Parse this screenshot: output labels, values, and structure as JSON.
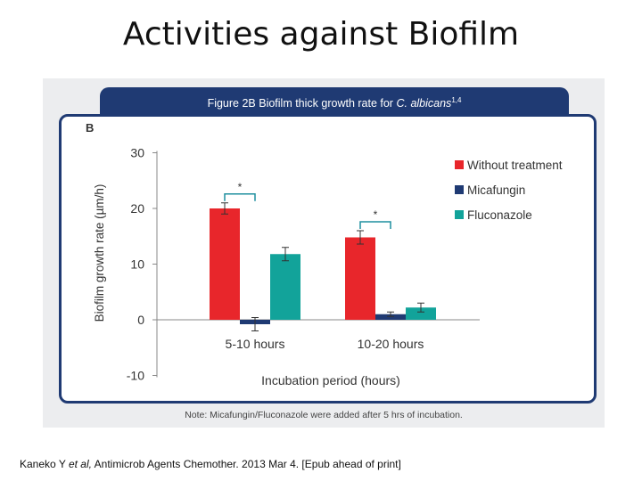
{
  "slide": {
    "title": "Activities against Biofilm",
    "citation": {
      "author": "Kaneko Y",
      "etal": "et al,",
      "rest": "Antimicrob Agents Chemother. 2013 Mar 4. [Epub ahead of print]"
    }
  },
  "figure": {
    "header": "Figure 2B Biofilm thick growth rate for",
    "header_species": "C. albicans",
    "header_refs": "1,4",
    "note": "Note: Micafungin/Fluconazole were added after 5 hrs of incubation."
  },
  "chart_data": {
    "type": "bar",
    "panel_label": "B",
    "title": "",
    "xlabel": "Incubation period (hours)",
    "ylabel": "Biofilm growth rate (µm/h)",
    "ylim": [
      -10,
      30
    ],
    "yticks": [
      "30",
      "20",
      "10",
      "0",
      "-10"
    ],
    "categories": [
      "5-10 hours",
      "10-20 hours"
    ],
    "legend_position": "right",
    "significance_marker": "*",
    "significance": [
      {
        "category": 0,
        "from_series": 0,
        "to_series": 1
      },
      {
        "category": 1,
        "from_series": 0,
        "to_series": 1
      }
    ],
    "series": [
      {
        "name": "Without treatment",
        "color": "#e8262b",
        "values": [
          20.0,
          14.8
        ],
        "errors": [
          1.0,
          1.2
        ]
      },
      {
        "name": "Micafungin",
        "color": "#1f3a73",
        "values": [
          -0.8,
          1.0
        ],
        "errors": [
          1.2,
          0.4
        ]
      },
      {
        "name": "Fluconazole",
        "color": "#12a39a",
        "values": [
          11.8,
          2.2
        ],
        "errors": [
          1.2,
          0.8
        ]
      }
    ]
  }
}
